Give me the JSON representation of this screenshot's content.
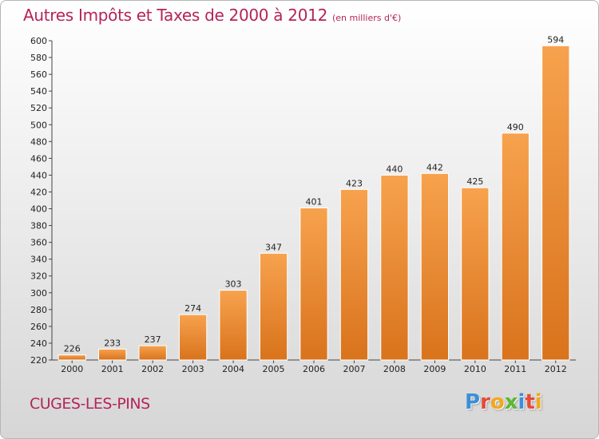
{
  "header": {
    "title": "Autres Impôts et Taxes de 2000 à 2012",
    "unit": "(en milliers d'€)"
  },
  "footer": {
    "commune": "CUGES-LES-PINS",
    "logo_letters": [
      {
        "char": "P",
        "color": "#3a8fd8"
      },
      {
        "char": "r",
        "color": "#e34b3a"
      },
      {
        "char": "o",
        "color": "#f2a81d"
      },
      {
        "char": "x",
        "color": "#5bb832"
      },
      {
        "char": "i",
        "color": "#3a8fd8"
      },
      {
        "char": "t",
        "color": "#e34b3a"
      },
      {
        "char": "i",
        "color": "#f2a81d"
      }
    ]
  },
  "chart_data": {
    "type": "bar",
    "title": "Autres Impôts et Taxes de 2000 à 2012",
    "subtitle": "(en milliers d'€)",
    "xlabel": "",
    "ylabel": "",
    "categories": [
      "2000",
      "2001",
      "2002",
      "2003",
      "2004",
      "2005",
      "2006",
      "2007",
      "2008",
      "2009",
      "2010",
      "2011",
      "2012"
    ],
    "values": [
      226,
      233,
      237,
      274,
      303,
      347,
      401,
      423,
      440,
      442,
      425,
      490,
      594
    ],
    "ylim": [
      220,
      600
    ],
    "yticks": [
      220,
      240,
      260,
      280,
      300,
      320,
      340,
      360,
      380,
      400,
      420,
      440,
      460,
      480,
      500,
      520,
      540,
      560,
      580,
      600
    ],
    "grid": false,
    "bar_color_top": "#f7a24e",
    "bar_color_bottom": "#d9731c"
  }
}
